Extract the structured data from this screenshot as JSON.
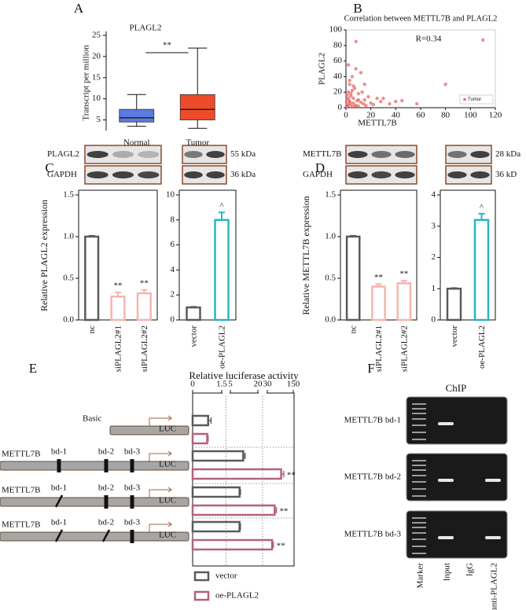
{
  "panel_labels": [
    "A",
    "B",
    "C",
    "D",
    "E",
    "F"
  ],
  "chart_data": [
    {
      "type": "box",
      "title": "PLAGL2",
      "ylabel": "Transcript per million",
      "categories": [
        "Normal",
        "Tumor"
      ],
      "boxes": [
        {
          "whislo": 3.5,
          "q1": 4.5,
          "med": 5.5,
          "q3": 7.5,
          "whishi": 11,
          "color": "#5b7be0"
        },
        {
          "whislo": 3,
          "q1": 5,
          "med": 7.5,
          "q3": 11,
          "whishi": 22,
          "color": "#ee4b2b"
        }
      ],
      "annotation": "**",
      "ylim": [
        2.5,
        25
      ],
      "yticks": [
        5,
        10,
        15,
        20,
        25
      ]
    },
    {
      "type": "scatter",
      "title": "Correlation between METTL7B and PLAGL2",
      "xlabel": "METTL7B",
      "ylabel": "PLAGL2",
      "annotation": "R=0.34",
      "legend": "lower right",
      "series": [
        {
          "name": "Tumor",
          "color": "#e86a6a",
          "x": [
            0.5,
            1,
            1,
            2,
            2,
            3,
            3,
            4,
            4,
            5,
            5,
            6,
            6,
            7,
            8,
            8,
            9,
            10,
            10,
            12,
            12,
            14,
            15,
            16,
            18,
            20,
            22,
            25,
            28,
            30,
            35,
            40,
            45,
            57,
            80,
            110,
            8,
            3,
            5,
            2,
            1,
            4,
            6,
            10,
            13,
            2,
            7,
            3,
            1,
            15
          ],
          "y": [
            2,
            5,
            10,
            3,
            20,
            8,
            30,
            4,
            15,
            1,
            40,
            12,
            6,
            25,
            85,
            3,
            9,
            18,
            2,
            7,
            45,
            5,
            10,
            3,
            14,
            6,
            4,
            12,
            8,
            12,
            5,
            8,
            9,
            5,
            30,
            87,
            50,
            35,
            22,
            55,
            2,
            18,
            28,
            10,
            20,
            12,
            2,
            7,
            16,
            30
          ]
        }
      ],
      "xlim": [
        0,
        120
      ],
      "xticks": [
        0,
        20,
        40,
        60,
        80,
        100,
        120
      ],
      "ylim": [
        0,
        100
      ],
      "yticks": [
        0,
        20,
        40,
        60,
        80,
        100
      ]
    },
    {
      "type": "bar",
      "ylabel": "Relative PLAGL2 expression",
      "categories": [
        "nc",
        "siPLAGL2#1",
        "siPLAGL2#2"
      ],
      "values": [
        1,
        0.28,
        0.32
      ],
      "errors": [
        0.01,
        0.05,
        0.04
      ],
      "annotations": [
        null,
        "**",
        "**"
      ],
      "colors": [
        "#5a5a5a",
        "#f5b5ad",
        "#f5b5ad"
      ],
      "ylim": [
        0,
        1.5
      ],
      "yticks": [
        {
          "value": 0,
          "label": "0.0"
        },
        0.5,
        {
          "value": 1,
          "label": "1.0"
        },
        1.5
      ]
    },
    {
      "type": "bar",
      "categories": [
        "vector",
        "oe-PLAGL2"
      ],
      "values": [
        1,
        8
      ],
      "errors": [
        0.05,
        0.6
      ],
      "annotations": [
        null,
        "^"
      ],
      "colors": [
        "#5a5a5a",
        "#2ab5c1"
      ],
      "ylim": [
        0,
        10
      ],
      "yticks": [
        0,
        2,
        4,
        6,
        8,
        10
      ]
    },
    {
      "type": "bar",
      "ylabel": "Relative METTL7B expression",
      "categories": [
        "nc",
        "siPLAGL2#1",
        "siPLAGL2#2"
      ],
      "values": [
        1,
        0.4,
        0.44
      ],
      "errors": [
        0.01,
        0.03,
        0.03
      ],
      "annotations": [
        null,
        "**",
        "**"
      ],
      "colors": [
        "#5a5a5a",
        "#f5b5ad",
        "#f5b5ad"
      ],
      "ylim": [
        0,
        1.5
      ],
      "yticks": [
        {
          "value": 0,
          "label": "0.0"
        },
        0.5,
        {
          "value": 1,
          "label": "1.0"
        },
        1.5
      ]
    },
    {
      "type": "bar",
      "categories": [
        "vector",
        "oe-PLAGL2"
      ],
      "values": [
        1,
        3.2
      ],
      "errors": [
        0.02,
        0.2
      ],
      "annotations": [
        null,
        "^"
      ],
      "colors": [
        "#5a5a5a",
        "#2ab5c1"
      ],
      "ylim": [
        0,
        4
      ],
      "yticks": [
        0,
        1,
        2,
        3,
        4
      ]
    },
    {
      "type": "hbar",
      "title": "Relative luciferase activity",
      "categories": [
        "Basic",
        "METTL7B",
        "METTL7B",
        "METTL7B"
      ],
      "constructs": {
        "sites": [
          [],
          [
            "bd-1",
            "bd-2",
            "bd-3"
          ],
          [
            "bd-1",
            "bd-2",
            "bd-3"
          ],
          [
            "bd-1",
            "bd-2",
            "bd-3"
          ]
        ],
        "mutated": [
          [],
          [
            false,
            false,
            false
          ],
          [
            true,
            false,
            false
          ],
          [
            true,
            true,
            false
          ]
        ],
        "reporter": [
          "LUC",
          "LUC",
          "LUC",
          "LUC"
        ]
      },
      "series": [
        {
          "name": "vector",
          "color": "#5a5a5a",
          "values": [
            0.8,
            12,
            10,
            10
          ],
          "errors": [
            0.15,
            1,
            0.5,
            0.5
          ],
          "annotations": [
            null,
            null,
            null,
            null
          ]
        },
        {
          "name": "oe-PLAGL2",
          "color": "#b5607f",
          "values": [
            0.75,
            94,
            64,
            52
          ],
          "errors": [
            0.05,
            12,
            8,
            6
          ],
          "annotations": [
            null,
            "**",
            "**",
            "**"
          ]
        }
      ],
      "xticks": [
        0,
        1.5,
        5,
        20,
        30,
        150
      ],
      "legend": "bottom-left"
    }
  ],
  "blots": [
    {
      "rows": [
        "PLAGL2",
        "GAPDH"
      ],
      "sizes": [
        "55 kDa",
        "36 kDa"
      ]
    },
    {
      "rows": [
        "METTL7B",
        "GAPDH"
      ],
      "sizes": [
        "28 kDa",
        "36 kD"
      ]
    }
  ],
  "chip": {
    "title": "ChIP",
    "rows": [
      "METTL7B bd-1",
      "METTL7B bd-2",
      "METTL7B bd-3"
    ],
    "lanes": [
      "Marker",
      "Input",
      "IgG",
      "anti-PLAGL2"
    ],
    "bands": [
      [
        true,
        false,
        false
      ],
      [
        true,
        false,
        true
      ],
      [
        true,
        false,
        true
      ]
    ]
  }
}
